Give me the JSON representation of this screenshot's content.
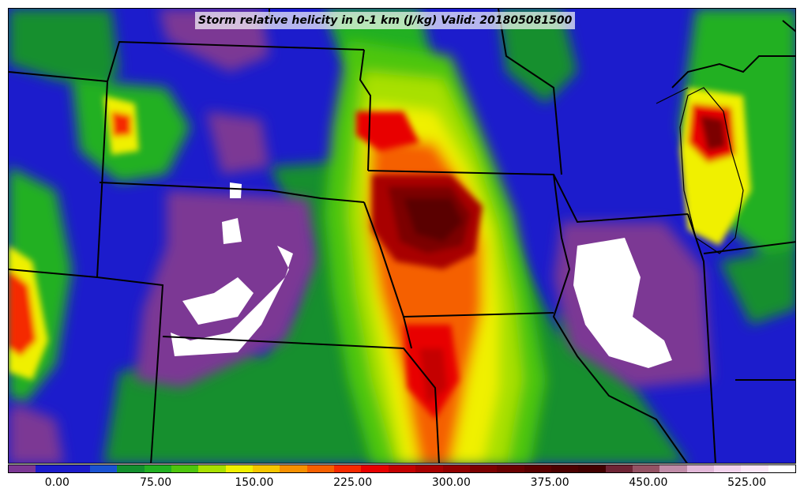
{
  "title": "Storm relative helicity in 0-1 km (J/kg) Valid: 201805081500",
  "colorbar": {
    "colors": [
      "#7b3794",
      "#1c1ccc",
      "#1c1ccc",
      "#1a52d2",
      "#138f2e",
      "#22b023",
      "#4ec60e",
      "#a8e000",
      "#f0f000",
      "#f5c600",
      "#f59000",
      "#f56000",
      "#f52a00",
      "#e80000",
      "#c40000",
      "#a80000",
      "#920000",
      "#7c0000",
      "#6a0000",
      "#5a0000",
      "#4c0000",
      "#420000",
      "#6e2434",
      "#945264",
      "#c08ca8",
      "#e2b8d8",
      "#f2d2ec",
      "#fbe6f6",
      "#ffffff"
    ],
    "tick_labels": [
      "0.00",
      "75.00",
      "150.00",
      "225.00",
      "300.00",
      "375.00",
      "450.00",
      "525.00"
    ],
    "tick_values": [
      0,
      75,
      150,
      225,
      300,
      375,
      450,
      525
    ],
    "range": [
      -37.5,
      562.5
    ]
  }
}
